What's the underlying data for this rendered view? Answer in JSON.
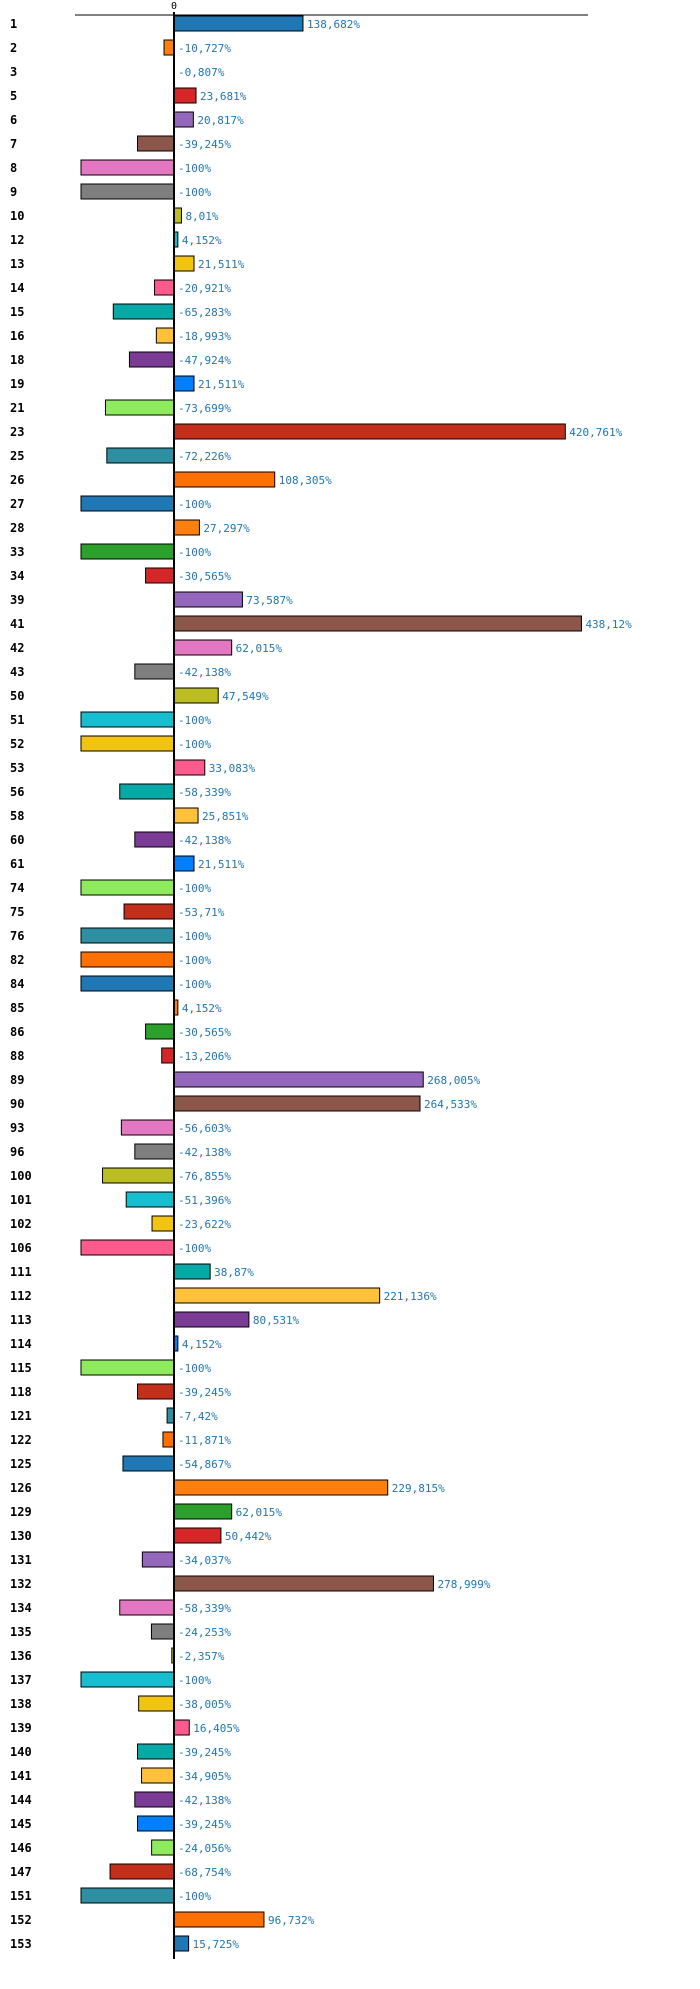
{
  "chart_data": {
    "type": "bar",
    "orientation": "horizontal",
    "zero_label": "0",
    "highlight_category": "42",
    "highlight_color": "#ff0000",
    "value_label_color": "#1f77b4",
    "palette": [
      "#1f77b4",
      "#ff7f0e",
      "#2ca02c",
      "#d62728",
      "#9467bd",
      "#8c564b",
      "#e377c2",
      "#7f7f7f",
      "#bcbd22",
      "#17becf",
      "#f0c410",
      "#ff5a8f",
      "#05aaa6",
      "#ffc03a",
      "#7b3c96",
      "#0080ff",
      "#90ea5e",
      "#c32f1b",
      "#2e8fa2",
      "#ff7000"
    ],
    "xlim": [
      -100,
      445
    ],
    "categories": [
      "1",
      "2",
      "3",
      "5",
      "6",
      "7",
      "8",
      "9",
      "10",
      "12",
      "13",
      "14",
      "15",
      "16",
      "18",
      "19",
      "21",
      "23",
      "25",
      "26",
      "27",
      "28",
      "33",
      "34",
      "39",
      "41",
      "42",
      "43",
      "50",
      "51",
      "52",
      "53",
      "56",
      "58",
      "60",
      "61",
      "74",
      "75",
      "76",
      "82",
      "84",
      "85",
      "86",
      "88",
      "89",
      "90",
      "93",
      "96",
      "100",
      "101",
      "102",
      "106",
      "111",
      "112",
      "113",
      "114",
      "115",
      "118",
      "121",
      "122",
      "125",
      "126",
      "129",
      "130",
      "131",
      "132",
      "134",
      "135",
      "136",
      "137",
      "138",
      "139",
      "140",
      "141",
      "144",
      "145",
      "146",
      "147",
      "151",
      "152",
      "153"
    ],
    "values": [
      138.682,
      -10.727,
      -0.807,
      23.681,
      20.817,
      -39.245,
      -100,
      -100,
      8.01,
      4.152,
      21.511,
      -20.921,
      -65.283,
      -18.993,
      -47.924,
      21.511,
      -73.699,
      420.761,
      -72.226,
      108.305,
      -100,
      27.297,
      -100,
      -30.565,
      73.587,
      438.12,
      62.015,
      -42.138,
      47.549,
      -100,
      -100,
      33.083,
      -58.339,
      25.851,
      -42.138,
      21.511,
      -100,
      -53.71,
      -100,
      -100,
      -100,
      4.152,
      -30.565,
      -13.206,
      268.005,
      264.533,
      -56.603,
      -42.138,
      -76.855,
      -51.396,
      -23.622,
      -100,
      38.87,
      221.136,
      80.531,
      4.152,
      -100,
      -39.245,
      -7.42,
      -11.871,
      -54.867,
      229.815,
      62.015,
      50.442,
      -34.037,
      278.999,
      -58.339,
      -24.253,
      -2.357,
      -100,
      -38.005,
      16.405,
      -39.245,
      -34.905,
      -42.138,
      -39.245,
      -24.056,
      -68.754,
      -100,
      96.732,
      15.725
    ],
    "value_labels": [
      "138,682%",
      "-10,727%",
      "-0,807%",
      "23,681%",
      "20,817%",
      "-39,245%",
      "-100%",
      "-100%",
      "8,01%",
      "4,152%",
      "21,511%",
      "-20,921%",
      "-65,283%",
      "-18,993%",
      "-47,924%",
      "21,511%",
      "-73,699%",
      "420,761%",
      "-72,226%",
      "108,305%",
      "-100%",
      "27,297%",
      "-100%",
      "-30,565%",
      "73,587%",
      "438,12%",
      "62,015%",
      "-42,138%",
      "47,549%",
      "-100%",
      "-100%",
      "33,083%",
      "-58,339%",
      "25,851%",
      "-42,138%",
      "21,511%",
      "-100%",
      "-53,71%",
      "-100%",
      "-100%",
      "-100%",
      "4,152%",
      "-30,565%",
      "-13,206%",
      "268,005%",
      "264,533%",
      "-56,603%",
      "-42,138%",
      "-76,855%",
      "-51,396%",
      "-23,622%",
      "-100%",
      "38,87%",
      "221,136%",
      "80,531%",
      "4,152%",
      "-100%",
      "-39,245%",
      "-7,42%",
      "-11,871%",
      "-54,867%",
      "229,815%",
      "62,015%",
      "50,442%",
      "-34,037%",
      "278,999%",
      "-58,339%",
      "-24,253%",
      "-2,357%",
      "-100%",
      "-38,005%",
      "16,405%",
      "-39,245%",
      "-34,905%",
      "-42,138%",
      "-39,245%",
      "-24,056%",
      "-68,754%",
      "-100%",
      "96,732%",
      "15,725%"
    ],
    "grid": false,
    "legend": "none"
  }
}
